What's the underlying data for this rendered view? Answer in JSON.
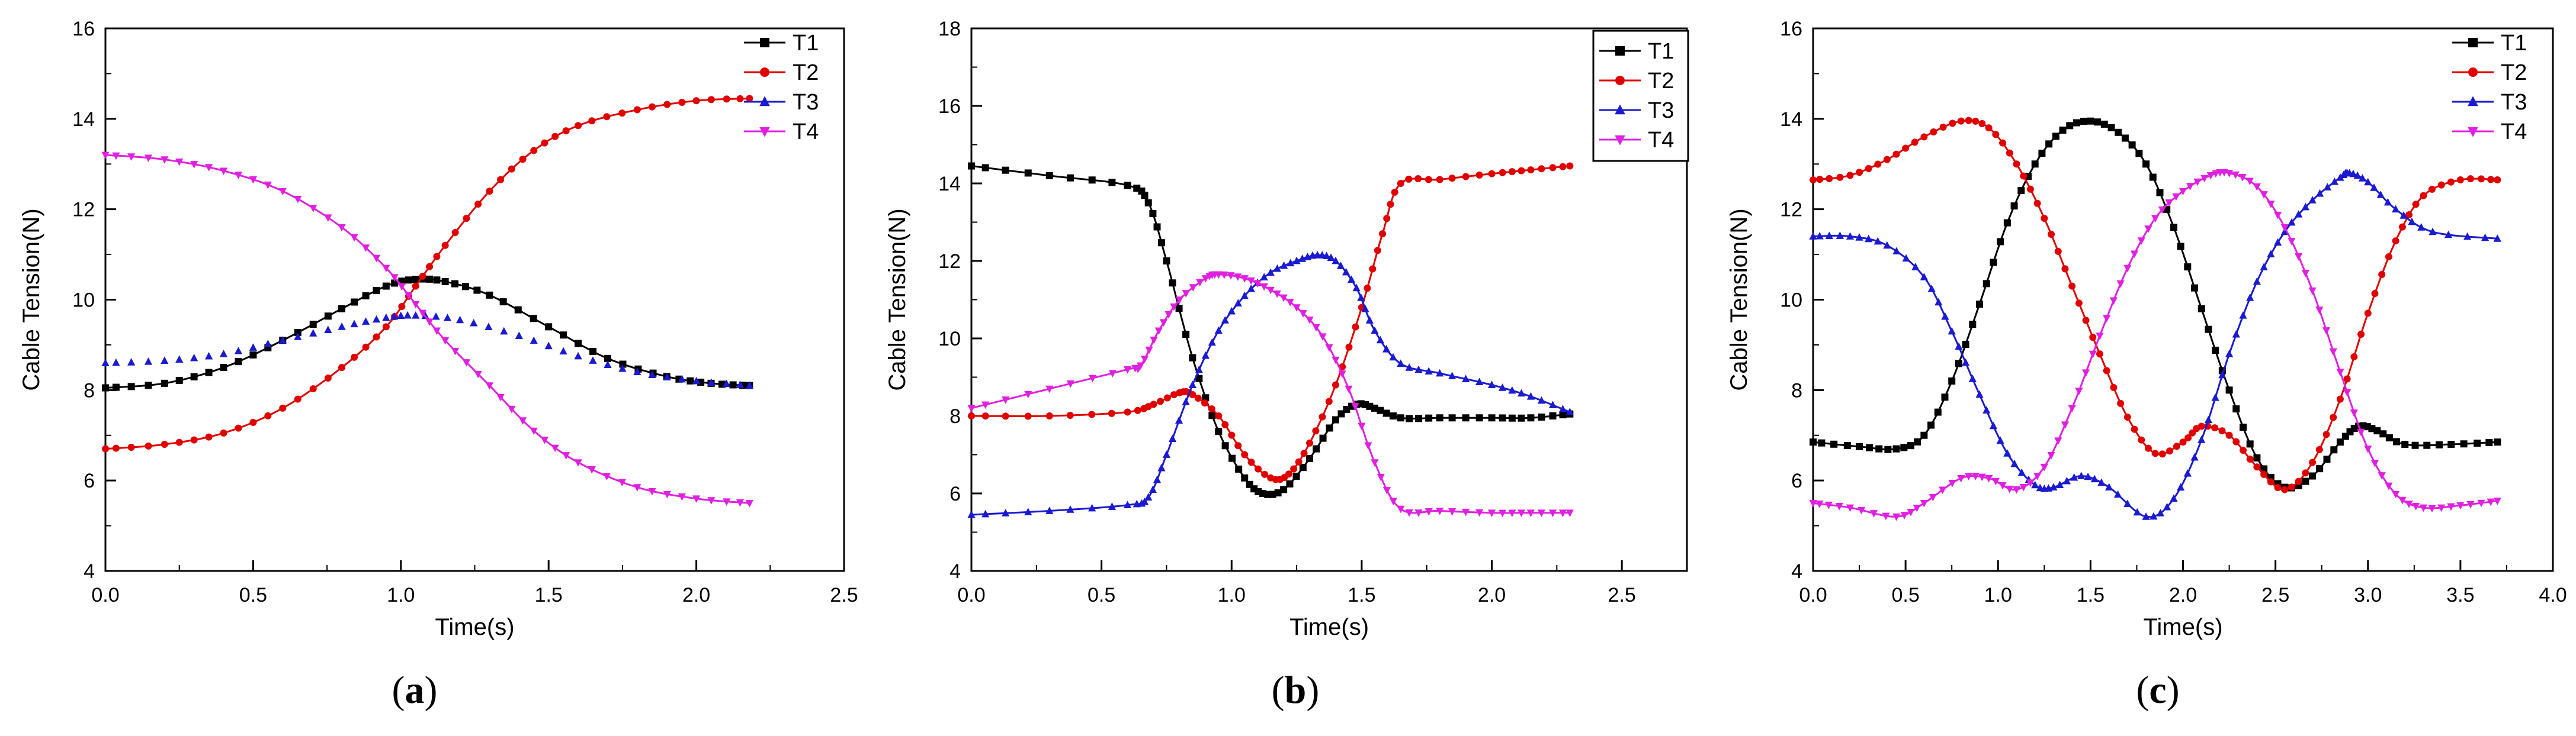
{
  "figure": {
    "panel_labels": [
      {
        "open": "(",
        "letter": "a",
        "close": ")"
      },
      {
        "open": "(",
        "letter": "b",
        "close": ")"
      },
      {
        "open": "(",
        "letter": "c",
        "close": ")"
      }
    ]
  },
  "series_styles": {
    "T1": {
      "color": "#000000",
      "marker": "square"
    },
    "T2": {
      "color": "#e00000",
      "marker": "circle"
    },
    "T3": {
      "color": "#1a1ad0",
      "marker": "triangle-up"
    },
    "T4": {
      "color": "#e020e0",
      "marker": "triangle-down"
    }
  },
  "chart_data": [
    {
      "type": "line",
      "title": "",
      "xlabel": "Time(s)",
      "ylabel": "Cable Tension(N)",
      "xlim": [
        0,
        2.5
      ],
      "ylim": [
        4,
        16
      ],
      "xticks": [
        0.0,
        0.5,
        1.0,
        1.5,
        2.0,
        2.5
      ],
      "yticks": [
        4,
        6,
        8,
        10,
        12,
        14,
        16
      ],
      "xtick_labels": [
        "0.0",
        "0.5",
        "1.0",
        "1.5",
        "2.0",
        "2.5"
      ],
      "ytick_labels": [
        "4",
        "6",
        "8",
        "10",
        "12",
        "14",
        "16"
      ],
      "legend": "top-right",
      "legend_box": false,
      "series": [
        {
          "name": "T1",
          "line": true,
          "points": [
            [
              0,
              8.05
            ],
            [
              0.2,
              8.15
            ],
            [
              0.4,
              8.5
            ],
            [
              0.6,
              9.1
            ],
            [
              0.8,
              9.8
            ],
            [
              0.95,
              10.3
            ],
            [
              1.05,
              10.45
            ],
            [
              1.15,
              10.4
            ],
            [
              1.3,
              10.1
            ],
            [
              1.5,
              9.4
            ],
            [
              1.7,
              8.7
            ],
            [
              1.9,
              8.3
            ],
            [
              2.05,
              8.15
            ],
            [
              2.18,
              8.1
            ]
          ]
        },
        {
          "name": "T2",
          "line": true,
          "points": [
            [
              0,
              6.7
            ],
            [
              0.2,
              6.8
            ],
            [
              0.4,
              7.05
            ],
            [
              0.6,
              7.6
            ],
            [
              0.8,
              8.5
            ],
            [
              0.95,
              9.4
            ],
            [
              1.05,
              10.3
            ],
            [
              1.15,
              11.2
            ],
            [
              1.3,
              12.4
            ],
            [
              1.45,
              13.3
            ],
            [
              1.6,
              13.85
            ],
            [
              1.8,
              14.2
            ],
            [
              2.0,
              14.4
            ],
            [
              2.18,
              14.45
            ]
          ]
        },
        {
          "name": "T3",
          "line": false,
          "points": [
            [
              0,
              8.6
            ],
            [
              0.2,
              8.65
            ],
            [
              0.4,
              8.8
            ],
            [
              0.6,
              9.1
            ],
            [
              0.8,
              9.4
            ],
            [
              0.95,
              9.6
            ],
            [
              1.05,
              9.65
            ],
            [
              1.2,
              9.55
            ],
            [
              1.4,
              9.2
            ],
            [
              1.6,
              8.75
            ],
            [
              1.8,
              8.4
            ],
            [
              2.0,
              8.2
            ],
            [
              2.18,
              8.1
            ]
          ]
        },
        {
          "name": "T4",
          "line": true,
          "points": [
            [
              0,
              13.2
            ],
            [
              0.2,
              13.1
            ],
            [
              0.4,
              12.85
            ],
            [
              0.6,
              12.4
            ],
            [
              0.8,
              11.6
            ],
            [
              0.95,
              10.7
            ],
            [
              1.05,
              9.9
            ],
            [
              1.15,
              9.1
            ],
            [
              1.3,
              8.1
            ],
            [
              1.45,
              7.1
            ],
            [
              1.6,
              6.4
            ],
            [
              1.8,
              5.85
            ],
            [
              2.0,
              5.6
            ],
            [
              2.18,
              5.5
            ]
          ]
        }
      ]
    },
    {
      "type": "line",
      "title": "",
      "xlabel": "Time(s)",
      "ylabel": "Cable Tension(N)",
      "xlim": [
        0,
        2.75
      ],
      "ylim": [
        4,
        18
      ],
      "xticks": [
        0.0,
        0.5,
        1.0,
        1.5,
        2.0,
        2.5
      ],
      "yticks": [
        4,
        6,
        8,
        10,
        12,
        14,
        16,
        18
      ],
      "xtick_labels": [
        "0.0",
        "0.5",
        "1.0",
        "1.5",
        "2.0",
        "2.5"
      ],
      "ytick_labels": [
        "4",
        "6",
        "8",
        "10",
        "12",
        "14",
        "16",
        "18"
      ],
      "legend": "top-right",
      "legend_box": true,
      "series": [
        {
          "name": "T1",
          "line": true,
          "points": [
            [
              0,
              14.45
            ],
            [
              0.3,
              14.2
            ],
            [
              0.6,
              13.95
            ],
            [
              0.68,
              13.5
            ],
            [
              0.75,
              12.0
            ],
            [
              0.85,
              9.5
            ],
            [
              0.95,
              7.6
            ],
            [
              1.05,
              6.4
            ],
            [
              1.12,
              6.0
            ],
            [
              1.2,
              6.1
            ],
            [
              1.3,
              6.9
            ],
            [
              1.4,
              7.9
            ],
            [
              1.48,
              8.3
            ],
            [
              1.55,
              8.2
            ],
            [
              1.65,
              7.95
            ],
            [
              1.8,
              7.95
            ],
            [
              2.0,
              7.95
            ],
            [
              2.15,
              7.95
            ],
            [
              2.3,
              8.05
            ]
          ]
        },
        {
          "name": "T2",
          "line": true,
          "points": [
            [
              0,
              8.0
            ],
            [
              0.3,
              8.0
            ],
            [
              0.6,
              8.1
            ],
            [
              0.7,
              8.3
            ],
            [
              0.8,
              8.6
            ],
            [
              0.85,
              8.55
            ],
            [
              0.95,
              8.0
            ],
            [
              1.05,
              7.0
            ],
            [
              1.15,
              6.4
            ],
            [
              1.22,
              6.5
            ],
            [
              1.3,
              7.3
            ],
            [
              1.4,
              8.8
            ],
            [
              1.5,
              10.8
            ],
            [
              1.58,
              12.7
            ],
            [
              1.65,
              14.0
            ],
            [
              1.8,
              14.1
            ],
            [
              2.0,
              14.25
            ],
            [
              2.15,
              14.35
            ],
            [
              2.3,
              14.45
            ]
          ]
        },
        {
          "name": "T3",
          "line": true,
          "points": [
            [
              0,
              5.45
            ],
            [
              0.3,
              5.55
            ],
            [
              0.6,
              5.7
            ],
            [
              0.68,
              5.9
            ],
            [
              0.75,
              7.0
            ],
            [
              0.85,
              8.8
            ],
            [
              0.95,
              10.2
            ],
            [
              1.05,
              11.1
            ],
            [
              1.15,
              11.7
            ],
            [
              1.25,
              12.0
            ],
            [
              1.33,
              12.15
            ],
            [
              1.4,
              12.0
            ],
            [
              1.48,
              11.3
            ],
            [
              1.55,
              10.2
            ],
            [
              1.65,
              9.35
            ],
            [
              1.8,
              9.1
            ],
            [
              2.0,
              8.8
            ],
            [
              2.15,
              8.5
            ],
            [
              2.3,
              8.1
            ]
          ]
        },
        {
          "name": "T4",
          "line": true,
          "points": [
            [
              0,
              8.2
            ],
            [
              0.3,
              8.7
            ],
            [
              0.6,
              9.2
            ],
            [
              0.65,
              9.3
            ],
            [
              0.72,
              10.2
            ],
            [
              0.8,
              11.0
            ],
            [
              0.9,
              11.55
            ],
            [
              0.95,
              11.65
            ],
            [
              1.05,
              11.55
            ],
            [
              1.15,
              11.25
            ],
            [
              1.25,
              10.8
            ],
            [
              1.35,
              10.05
            ],
            [
              1.45,
              8.7
            ],
            [
              1.55,
              6.8
            ],
            [
              1.65,
              5.6
            ],
            [
              1.8,
              5.55
            ],
            [
              2.0,
              5.5
            ],
            [
              2.15,
              5.5
            ],
            [
              2.3,
              5.5
            ]
          ]
        }
      ]
    },
    {
      "type": "line",
      "title": "",
      "xlabel": "Time(s)",
      "ylabel": "Cable Tension(N)",
      "xlim": [
        0,
        4.0
      ],
      "ylim": [
        4,
        16
      ],
      "xticks": [
        0.0,
        0.5,
        1.0,
        1.5,
        2.0,
        2.5,
        3.0,
        3.5,
        4.0
      ],
      "yticks": [
        4,
        6,
        8,
        10,
        12,
        14,
        16
      ],
      "xtick_labels": [
        "0.0",
        "0.5",
        "1.0",
        "1.5",
        "2.0",
        "2.5",
        "3.0",
        "3.5",
        "4.0"
      ],
      "ytick_labels": [
        "4",
        "6",
        "8",
        "10",
        "12",
        "14",
        "16"
      ],
      "legend": "top-right",
      "legend_box": false,
      "series": [
        {
          "name": "T1",
          "line": true,
          "points": [
            [
              0,
              6.85
            ],
            [
              0.25,
              6.75
            ],
            [
              0.45,
              6.7
            ],
            [
              0.6,
              7.0
            ],
            [
              0.75,
              8.2
            ],
            [
              0.9,
              9.9
            ],
            [
              1.05,
              11.7
            ],
            [
              1.2,
              13.0
            ],
            [
              1.35,
              13.75
            ],
            [
              1.5,
              13.95
            ],
            [
              1.65,
              13.7
            ],
            [
              1.8,
              13.0
            ],
            [
              1.95,
              11.6
            ],
            [
              2.1,
              9.8
            ],
            [
              2.25,
              8.0
            ],
            [
              2.4,
              6.5
            ],
            [
              2.55,
              5.85
            ],
            [
              2.7,
              6.1
            ],
            [
              2.85,
              6.85
            ],
            [
              2.95,
              7.2
            ],
            [
              3.05,
              7.1
            ],
            [
              3.2,
              6.8
            ],
            [
              3.45,
              6.8
            ],
            [
              3.7,
              6.85
            ]
          ]
        },
        {
          "name": "T2",
          "line": true,
          "points": [
            [
              0,
              12.65
            ],
            [
              0.2,
              12.75
            ],
            [
              0.4,
              13.1
            ],
            [
              0.6,
              13.6
            ],
            [
              0.8,
              13.95
            ],
            [
              0.95,
              13.8
            ],
            [
              1.1,
              13.0
            ],
            [
              1.25,
              11.8
            ],
            [
              1.4,
              10.3
            ],
            [
              1.55,
              8.8
            ],
            [
              1.7,
              7.4
            ],
            [
              1.85,
              6.6
            ],
            [
              2.0,
              6.85
            ],
            [
              2.1,
              7.2
            ],
            [
              2.25,
              7.0
            ],
            [
              2.4,
              6.3
            ],
            [
              2.55,
              5.8
            ],
            [
              2.7,
              6.4
            ],
            [
              2.85,
              7.8
            ],
            [
              3.0,
              9.7
            ],
            [
              3.15,
              11.3
            ],
            [
              3.3,
              12.3
            ],
            [
              3.5,
              12.65
            ],
            [
              3.7,
              12.65
            ]
          ]
        },
        {
          "name": "T3",
          "line": true,
          "points": [
            [
              0,
              11.4
            ],
            [
              0.2,
              11.4
            ],
            [
              0.4,
              11.2
            ],
            [
              0.6,
              10.5
            ],
            [
              0.75,
              9.3
            ],
            [
              0.9,
              7.9
            ],
            [
              1.05,
              6.6
            ],
            [
              1.2,
              5.9
            ],
            [
              1.3,
              5.85
            ],
            [
              1.45,
              6.1
            ],
            [
              1.6,
              5.85
            ],
            [
              1.8,
              5.2
            ],
            [
              1.95,
              5.6
            ],
            [
              2.1,
              6.9
            ],
            [
              2.25,
              8.8
            ],
            [
              2.4,
              10.4
            ],
            [
              2.55,
              11.5
            ],
            [
              2.7,
              12.2
            ],
            [
              2.85,
              12.7
            ],
            [
              2.9,
              12.8
            ],
            [
              3.0,
              12.6
            ],
            [
              3.15,
              12.0
            ],
            [
              3.35,
              11.5
            ],
            [
              3.7,
              11.35
            ]
          ]
        },
        {
          "name": "T4",
          "line": true,
          "points": [
            [
              0,
              5.5
            ],
            [
              0.2,
              5.4
            ],
            [
              0.45,
              5.2
            ],
            [
              0.6,
              5.5
            ],
            [
              0.8,
              6.05
            ],
            [
              0.95,
              6.05
            ],
            [
              1.1,
              5.8
            ],
            [
              1.25,
              6.3
            ],
            [
              1.4,
              7.6
            ],
            [
              1.55,
              9.2
            ],
            [
              1.7,
              10.7
            ],
            [
              1.85,
              11.8
            ],
            [
              2.0,
              12.4
            ],
            [
              2.15,
              12.75
            ],
            [
              2.25,
              12.8
            ],
            [
              2.4,
              12.5
            ],
            [
              2.55,
              11.6
            ],
            [
              2.7,
              10.2
            ],
            [
              2.85,
              8.4
            ],
            [
              3.0,
              6.7
            ],
            [
              3.15,
              5.7
            ],
            [
              3.3,
              5.4
            ],
            [
              3.5,
              5.45
            ],
            [
              3.7,
              5.55
            ]
          ]
        }
      ]
    }
  ]
}
